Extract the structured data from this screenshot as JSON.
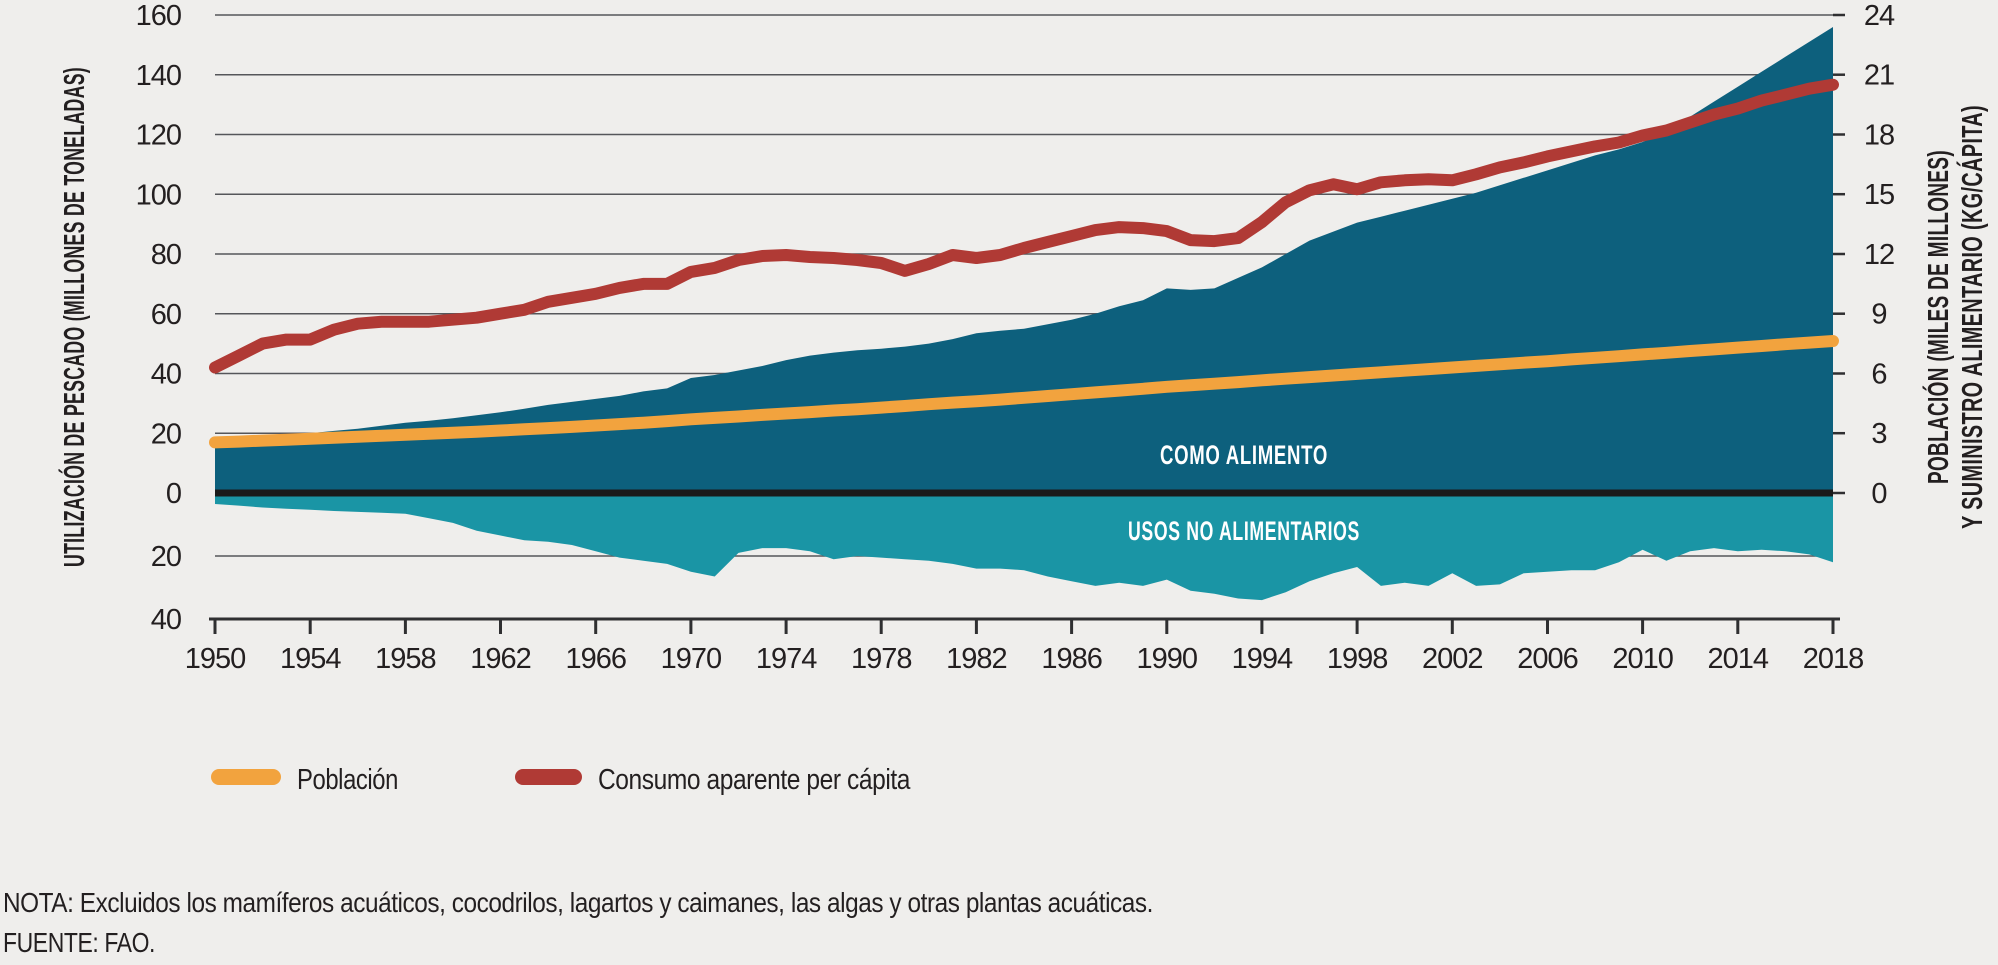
{
  "figure": {
    "background_color": "#EFEEEC",
    "note": "NOTA: Excluidos los mamíferos acuáticos, cocodrilos, lagartos y caimanes, las algas y otras plantas acuáticas.",
    "source": "FUENTE: FAO."
  },
  "chart_data": {
    "type": "area",
    "grid": true,
    "legend_position": "bottom-left",
    "years": [
      1950,
      1951,
      1952,
      1953,
      1954,
      1955,
      1956,
      1957,
      1958,
      1959,
      1960,
      1961,
      1962,
      1963,
      1964,
      1965,
      1966,
      1967,
      1968,
      1969,
      1970,
      1971,
      1972,
      1973,
      1974,
      1975,
      1976,
      1977,
      1978,
      1979,
      1980,
      1981,
      1982,
      1983,
      1984,
      1985,
      1986,
      1987,
      1988,
      1989,
      1990,
      1991,
      1992,
      1993,
      1994,
      1995,
      1996,
      1997,
      1998,
      1999,
      2000,
      2001,
      2002,
      2003,
      2004,
      2005,
      2006,
      2007,
      2008,
      2009,
      2010,
      2011,
      2012,
      2013,
      2014,
      2015,
      2016,
      2017,
      2018
    ],
    "x_tick_labels": [
      "1950",
      "1954",
      "1958",
      "1962",
      "1966",
      "1970",
      "1974",
      "1978",
      "1982",
      "1986",
      "1990",
      "1994",
      "1998",
      "2002",
      "2006",
      "2010",
      "2014",
      "2018"
    ],
    "left_axis": {
      "title": "UTILIZACIÓN DE PESCADO (MILLONES DE TONELADAS)",
      "tick_values": [
        160,
        140,
        120,
        100,
        80,
        60,
        40,
        20,
        0,
        -20,
        -40
      ],
      "tick_labels": [
        "160",
        "140",
        "120",
        "100",
        "80",
        "60",
        "40",
        "20",
        "0",
        "20",
        "40"
      ],
      "gridline_values": [
        160,
        140,
        120,
        100,
        80,
        60,
        40,
        20,
        -20
      ],
      "range": [
        -40,
        160
      ]
    },
    "right_axis": {
      "title_line1": "POBLACIÓN (MILES DE MILLONES)",
      "title_line2": "Y SUMINISTRO ALIMENTARIO (KG/CÁPITA)",
      "tick_values": [
        24,
        21,
        18,
        15,
        12,
        9,
        6,
        3,
        0
      ],
      "tick_labels": [
        "24",
        "21",
        "18",
        "15",
        "12",
        "9",
        "6",
        "3",
        "0"
      ],
      "range": [
        0,
        24
      ]
    },
    "series": [
      {
        "name": "Como alimento",
        "kind": "area",
        "axis": "left",
        "color": "#0D607D",
        "area_label": "COMO ALIMENTO",
        "values": [
          16.5,
          17.2,
          18,
          19,
          20,
          20.8,
          21.5,
          22.5,
          23.5,
          24.2,
          25,
          26,
          27,
          28.2,
          29.5,
          30.5,
          31.5,
          32.5,
          34,
          35,
          38.5,
          39.5,
          41,
          42.5,
          44.5,
          46,
          47,
          47.8,
          48.3,
          49,
          50,
          51.5,
          53.5,
          54.3,
          55,
          56.5,
          58,
          60,
          62.5,
          64.5,
          68.5,
          68,
          68.5,
          72,
          75.5,
          80,
          84.5,
          87.5,
          90.5,
          92.5,
          94.5,
          96.5,
          98.5,
          100.5,
          103,
          105.5,
          108,
          110.5,
          113,
          115,
          117.5,
          121,
          126,
          131,
          136,
          141,
          146,
          151,
          156
        ]
      },
      {
        "name": "Usos no alimentarios",
        "kind": "area",
        "axis": "left",
        "color": "#1A95A5",
        "area_label": "USOS NO ALIMENTARIOS",
        "values": [
          -3.5,
          -4,
          -4.6,
          -5,
          -5.3,
          -5.7,
          -6,
          -6.3,
          -6.6,
          -8,
          -9.5,
          -12,
          -13.5,
          -15,
          -15.5,
          -16.5,
          -18.5,
          -20.5,
          -21.5,
          -22.5,
          -25,
          -26.5,
          -19,
          -17.5,
          -17.5,
          -18.5,
          -21,
          -20,
          -20.5,
          -21,
          -21.5,
          -22.5,
          -24,
          -24,
          -24.5,
          -26.5,
          -28,
          -29.5,
          -28.5,
          -29.5,
          -27.5,
          -31,
          -32,
          -33.5,
          -34,
          -31.5,
          -28,
          -25.5,
          -23.5,
          -29.5,
          -28.5,
          -29.5,
          -25.5,
          -29.5,
          -29,
          -25.5,
          -25,
          -24.5,
          -24.5,
          -22,
          -18,
          -21.5,
          -18.5,
          -17.5,
          -18.5,
          -18,
          -18.5,
          -19.5,
          -22
        ]
      },
      {
        "name": "Población",
        "kind": "line",
        "axis": "right",
        "color": "#F2A33E",
        "values": [
          2.54,
          2.58,
          2.63,
          2.67,
          2.72,
          2.77,
          2.82,
          2.87,
          2.92,
          2.97,
          3.03,
          3.08,
          3.14,
          3.2,
          3.26,
          3.32,
          3.39,
          3.46,
          3.53,
          3.61,
          3.7,
          3.77,
          3.84,
          3.92,
          3.99,
          4.06,
          4.14,
          4.21,
          4.29,
          4.37,
          4.46,
          4.54,
          4.61,
          4.69,
          4.78,
          4.87,
          4.96,
          5.05,
          5.14,
          5.23,
          5.33,
          5.41,
          5.49,
          5.57,
          5.66,
          5.74,
          5.82,
          5.9,
          5.98,
          6.06,
          6.14,
          6.22,
          6.3,
          6.38,
          6.46,
          6.54,
          6.62,
          6.71,
          6.79,
          6.87,
          6.96,
          7.04,
          7.13,
          7.21,
          7.3,
          7.38,
          7.47,
          7.55,
          7.63
        ]
      },
      {
        "name": "Consumo aparente per cápita",
        "kind": "line",
        "axis": "right",
        "color": "#B03A35",
        "values": [
          6.3,
          6.9,
          7.5,
          7.7,
          7.7,
          8.2,
          8.5,
          8.6,
          8.6,
          8.6,
          8.7,
          8.8,
          9,
          9.2,
          9.6,
          9.8,
          10,
          10.3,
          10.5,
          10.5,
          11.1,
          11.3,
          11.7,
          11.9,
          11.95,
          11.85,
          11.8,
          11.7,
          11.55,
          11.15,
          11.5,
          11.95,
          11.8,
          11.95,
          12.3,
          12.6,
          12.9,
          13.2,
          13.35,
          13.3,
          13.15,
          12.7,
          12.65,
          12.8,
          13.6,
          14.6,
          15.2,
          15.5,
          15.25,
          15.6,
          15.7,
          15.75,
          15.7,
          16,
          16.35,
          16.6,
          16.9,
          17.15,
          17.4,
          17.6,
          17.95,
          18.2,
          18.6,
          19,
          19.3,
          19.7,
          20,
          20.3,
          20.5
        ]
      }
    ],
    "legend": [
      {
        "label": "Población",
        "color": "#F2A33E"
      },
      {
        "label": "Consumo aparente per cápita",
        "color": "#B03A35"
      }
    ]
  },
  "style": {
    "gridline_color": "#55565A",
    "zero_line_color": "#1A1A1A",
    "axis_line_color": "#2F2F31",
    "text_color": "#231F20"
  }
}
